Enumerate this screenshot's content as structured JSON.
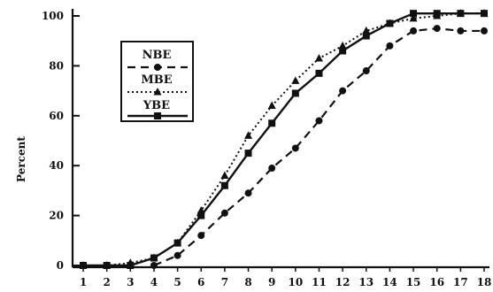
{
  "chart_data": {
    "type": "line",
    "title": "",
    "xlabel": "",
    "ylabel": "Percent",
    "x": [
      1,
      2,
      3,
      4,
      5,
      6,
      7,
      8,
      9,
      10,
      11,
      12,
      13,
      14,
      15,
      16,
      17,
      18
    ],
    "xlim": [
      1,
      18
    ],
    "ylim": [
      0,
      100
    ],
    "yticks": [
      0,
      20,
      40,
      60,
      80,
      100
    ],
    "xticks": [
      1,
      2,
      3,
      4,
      5,
      6,
      7,
      8,
      9,
      10,
      11,
      12,
      13,
      14,
      15,
      16,
      17,
      18
    ],
    "grid": false,
    "legend_position": "upper-left",
    "series": [
      {
        "name": "NBE",
        "line_style": "dashed",
        "marker": "circle",
        "x": [
          4,
          5,
          6,
          7,
          8,
          9,
          10,
          11,
          12,
          13,
          14,
          15,
          16,
          17,
          18
        ],
        "values": [
          0,
          4,
          12,
          21,
          29,
          39,
          47,
          58,
          70,
          78,
          88,
          94,
          95,
          94,
          94
        ]
      },
      {
        "name": "MBE",
        "line_style": "dotted",
        "marker": "triangle",
        "x": [
          1,
          2,
          3,
          4,
          5,
          6,
          7,
          8,
          9,
          10,
          11,
          12,
          13,
          14,
          15,
          16,
          17,
          18
        ],
        "values": [
          0,
          0,
          1,
          3,
          9,
          22,
          36,
          52,
          64,
          74,
          83,
          88,
          94,
          97,
          99,
          100,
          101,
          101
        ]
      },
      {
        "name": "YBE",
        "line_style": "solid",
        "marker": "square",
        "x": [
          1,
          2,
          3,
          4,
          5,
          6,
          7,
          8,
          9,
          10,
          11,
          12,
          13,
          14,
          15,
          16,
          17,
          18
        ],
        "values": [
          0,
          0,
          0,
          3,
          9,
          20,
          32,
          45,
          57,
          69,
          77,
          86,
          92,
          97,
          101,
          101,
          101,
          101
        ]
      }
    ]
  }
}
